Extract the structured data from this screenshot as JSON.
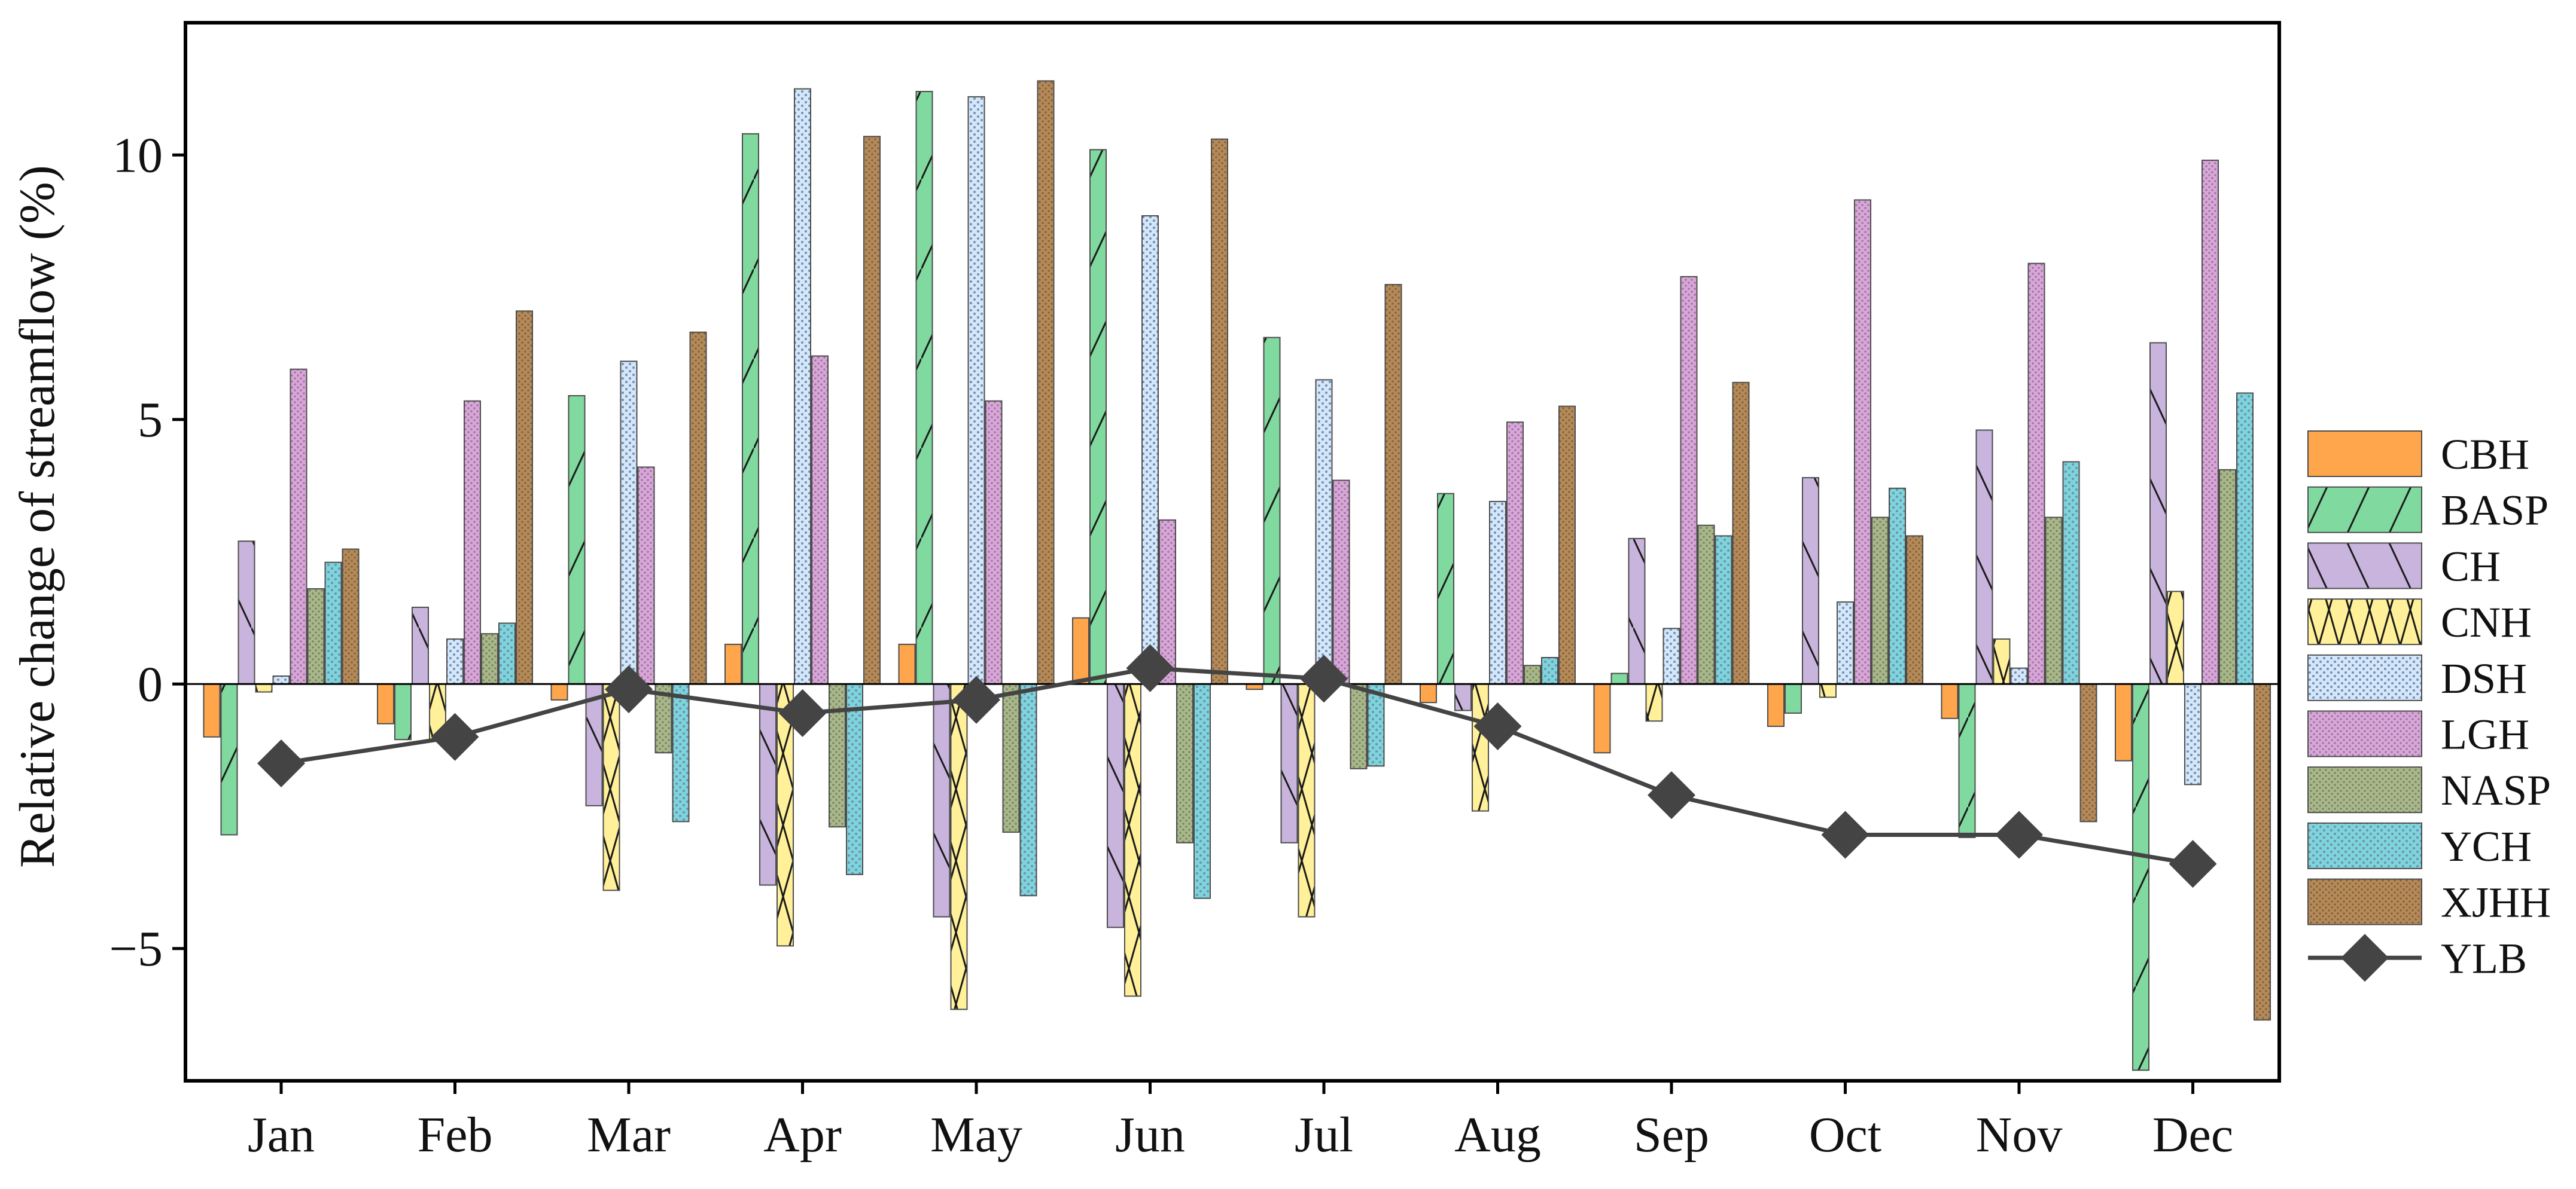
{
  "chart_data": {
    "type": "bar",
    "title": "",
    "xlabel": "",
    "ylabel": "Relative change of streamflow (%)",
    "ylim": [
      -7.5,
      12.5
    ],
    "yticks": [
      -5,
      0,
      5,
      10
    ],
    "ytick_labels": [
      "−5",
      "0",
      "5",
      "10"
    ],
    "categories": [
      "Jan",
      "Feb",
      "Mar",
      "Apr",
      "May",
      "Jun",
      "Jul",
      "Aug",
      "Sep",
      "Oct",
      "Nov",
      "Dec"
    ],
    "series": [
      {
        "name": "CBH",
        "color": "#FFA64D",
        "pattern": "none",
        "values": [
          -1.0,
          -0.75,
          -0.3,
          0.75,
          0.75,
          1.25,
          -0.1,
          -0.35,
          -1.3,
          -0.8,
          -0.65,
          -1.45
        ]
      },
      {
        "name": "BASP",
        "color": "#80D99E",
        "pattern": "fslash",
        "values": [
          -2.85,
          -1.05,
          5.45,
          10.4,
          11.2,
          10.1,
          6.55,
          3.6,
          0.2,
          -0.55,
          -2.9,
          -7.3
        ]
      },
      {
        "name": "CH",
        "color": "#C8B4DC",
        "pattern": "bslash",
        "values": [
          2.7,
          1.45,
          -2.3,
          -3.8,
          -4.4,
          -4.6,
          -3.0,
          -0.5,
          2.75,
          3.9,
          4.8,
          6.45
        ]
      },
      {
        "name": "CNH",
        "color": "#FFF099",
        "pattern": "cross",
        "values": [
          -0.15,
          -1.05,
          -3.9,
          -4.95,
          -6.15,
          -5.9,
          -4.4,
          -2.4,
          -0.7,
          -0.25,
          0.85,
          1.75
        ]
      },
      {
        "name": "DSH",
        "color": "#D4E6F8",
        "pattern": "dots",
        "values": [
          0.15,
          0.85,
          6.1,
          11.25,
          11.1,
          8.85,
          5.75,
          3.45,
          1.05,
          1.55,
          0.3,
          -1.9
        ]
      },
      {
        "name": "LGH",
        "color": "#D9A6D9",
        "pattern": "fine",
        "values": [
          5.95,
          5.35,
          4.1,
          6.2,
          5.35,
          3.1,
          3.85,
          4.95,
          7.7,
          9.15,
          7.95,
          9.9
        ]
      },
      {
        "name": "NASP",
        "color": "#A9B88A",
        "pattern": "fine",
        "values": [
          1.8,
          0.95,
          -1.3,
          -2.7,
          -2.8,
          -3.0,
          -1.6,
          0.35,
          3.0,
          3.15,
          3.15,
          4.05
        ]
      },
      {
        "name": "YCH",
        "color": "#7DD4D9",
        "pattern": "dots",
        "values": [
          2.3,
          1.15,
          -2.6,
          -3.6,
          -4.0,
          -4.05,
          -1.55,
          0.5,
          2.8,
          3.7,
          4.2,
          5.5
        ]
      },
      {
        "name": "XJHH",
        "color": "#B58A58",
        "pattern": "fine",
        "values": [
          2.55,
          7.05,
          6.65,
          10.35,
          11.4,
          10.3,
          7.55,
          5.25,
          5.7,
          2.8,
          -2.6,
          -6.35
        ]
      },
      {
        "name": "YLB",
        "type": "line",
        "color": "#444444",
        "marker": "diamond",
        "values": [
          -1.5,
          -1.0,
          -0.1,
          -0.55,
          -0.3,
          0.3,
          0.1,
          -0.8,
          -2.1,
          -2.85,
          -2.85,
          -3.4
        ]
      }
    ],
    "grid": false,
    "legend_position": "right"
  }
}
